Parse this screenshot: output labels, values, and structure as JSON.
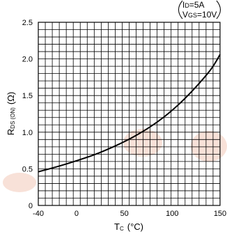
{
  "chart_data": {
    "type": "line",
    "title": "",
    "xlabel": {
      "main": "T",
      "sub": "C",
      "unit": "(°C)"
    },
    "ylabel": {
      "main": "R",
      "sub": "DS (ON)",
      "unit": "(Ω)"
    },
    "xlim": [
      -40,
      150
    ],
    "ylim": [
      0,
      2.5
    ],
    "xticks": [
      "-40",
      "0",
      "50",
      "100",
      "150"
    ],
    "yticks": [
      "0",
      "0.5",
      "1.0",
      "1.5",
      "2.0",
      "2.5"
    ],
    "grid": true,
    "conditions": {
      "line1_main": "I",
      "line1_sub": "D",
      "line1_rest": "=5A",
      "line2_main": "V",
      "line2_sub": "GS",
      "line2_rest": "=10V"
    },
    "series": [
      {
        "x": [
          -40,
          -20,
          0,
          20,
          40,
          60,
          80,
          100,
          120,
          140,
          150
        ],
        "y": [
          0.46,
          0.53,
          0.61,
          0.7,
          0.81,
          0.94,
          1.1,
          1.3,
          1.55,
          1.85,
          2.06
        ]
      }
    ]
  },
  "watermark": {
    "color": "#f3c9b8"
  }
}
